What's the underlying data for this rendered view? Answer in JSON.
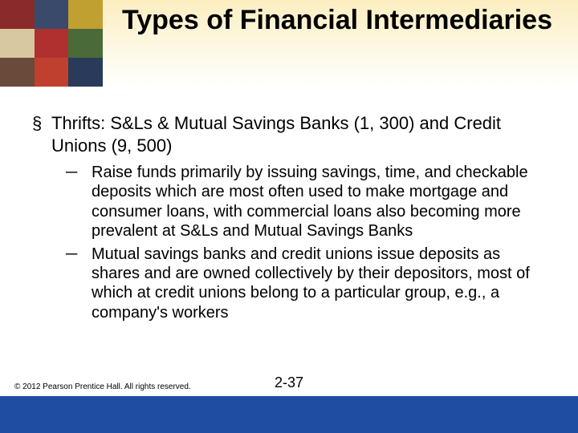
{
  "title": "Types of Financial Intermediaries",
  "title_fontsize": 34,
  "bullet": {
    "text": "Thrifts: S&Ls & Mutual Savings Banks (1, 300) and Credit Unions (9, 500)",
    "fontsize": 22,
    "sub": [
      "Raise funds primarily by issuing savings, time, and checkable deposits which are most often used to make mortgage and consumer loans, with commercial loans also becoming more prevalent at S&Ls and Mutual Savings Banks",
      "Mutual savings banks and credit unions issue deposits as shares and are owned collectively by their depositors, most of which at credit unions belong to a particular group, e.g., a company's workers"
    ],
    "sub_fontsize": 20
  },
  "copyright": "© 2012 Pearson Prentice Hall. All rights reserved.",
  "copyright_fontsize": 10,
  "page_number": "2-37",
  "page_number_fontsize": 18,
  "colors": {
    "footer_band": "#1f4ea1",
    "header_gradient_top": "#fceec0",
    "header_gradient_bottom": "#ffffff",
    "text": "#000000"
  },
  "header_collage": [
    [
      "#8a2a2a",
      "#3a4a6a",
      "#c0a030"
    ],
    [
      "#d8c8a0",
      "#b03030",
      "#4a6a3a"
    ],
    [
      "#6a4a3a",
      "#c04030",
      "#2a3a5a"
    ]
  ]
}
